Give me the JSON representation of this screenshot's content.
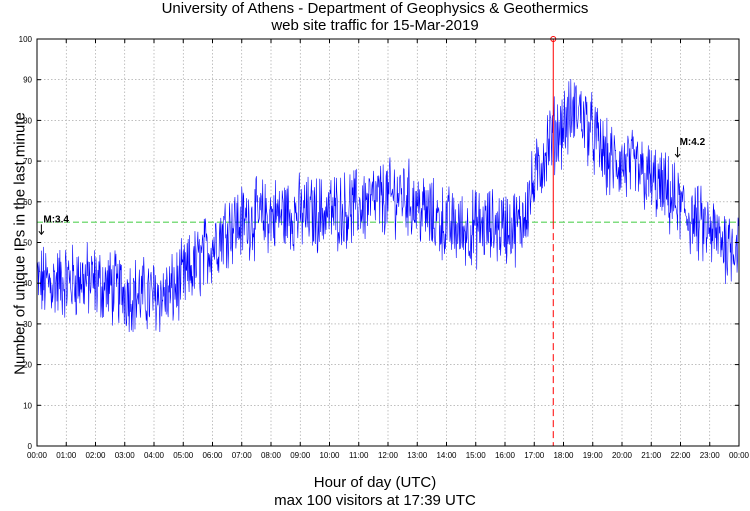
{
  "chart_data": {
    "type": "line",
    "title_lines": [
      "University of Athens - Department of Geophysics & Geothermics",
      "web site traffic for 15-Mar-2019"
    ],
    "xlabel": "Hour of day (UTC)",
    "xlabel_sub": "max 100 visitors at 17:39 UTC",
    "ylabel": "Number of unique IPs in the last minute",
    "ylim": [
      0,
      100
    ],
    "xlim_hours": [
      0,
      24
    ],
    "x_ticks": [
      "00:00",
      "01:00",
      "02:00",
      "03:00",
      "04:00",
      "05:00",
      "06:00",
      "07:00",
      "08:00",
      "09:00",
      "10:00",
      "11:00",
      "12:00",
      "13:00",
      "14:00",
      "15:00",
      "16:00",
      "17:00",
      "18:00",
      "19:00",
      "20:00",
      "21:00",
      "22:00",
      "23:00",
      "00:00"
    ],
    "y_ticks": [
      0,
      10,
      20,
      30,
      40,
      50,
      60,
      70,
      80,
      90,
      100
    ],
    "grid": true,
    "series": [
      {
        "color": "#0000ff",
        "hourly_mean_x": [
          0.5,
          1.5,
          2.5,
          3.5,
          4.5,
          5.5,
          6.5,
          7.5,
          8.5,
          9.5,
          10.5,
          11.5,
          12.5,
          13.5,
          14.5,
          15.5,
          16.5,
          17.5,
          18.5,
          19.5,
          20.5,
          21.5,
          22.5,
          23.5
        ],
        "hourly_mean_y": [
          40,
          41,
          39,
          37,
          37,
          45,
          54,
          56,
          57,
          57,
          58,
          60,
          62,
          56,
          53,
          54,
          54,
          75,
          83,
          70,
          68,
          62,
          55,
          50
        ]
      }
    ],
    "average_line": {
      "value": 55,
      "color": "#00bb00"
    },
    "max_marker": {
      "x_hour": 17.65,
      "value": 100,
      "color": "#ff0000"
    },
    "annotations": [
      {
        "label": "M:3.4",
        "x_hour": 0.15,
        "y": 52
      },
      {
        "label": "M:4.2",
        "x_hour": 21.9,
        "y": 71
      }
    ]
  }
}
